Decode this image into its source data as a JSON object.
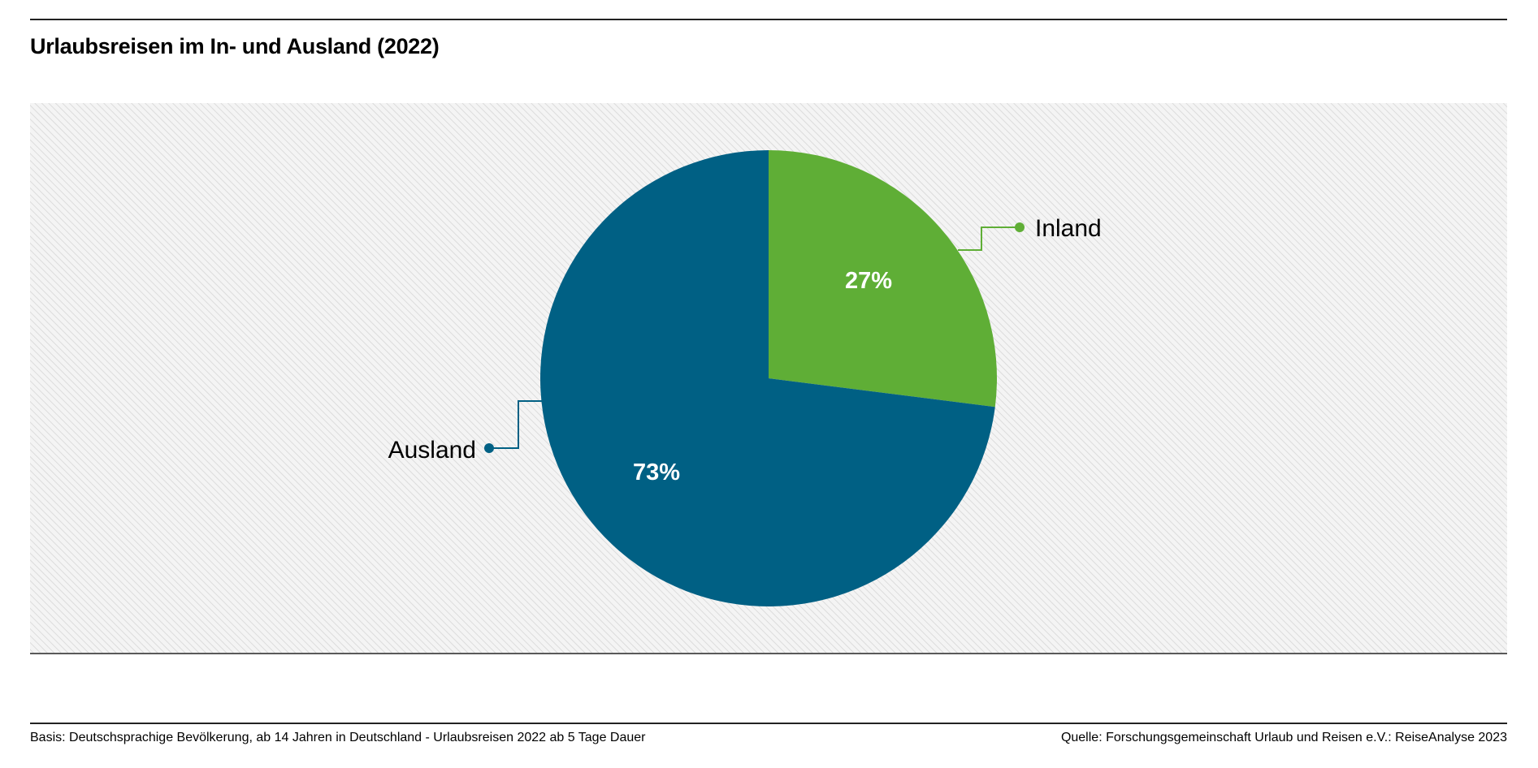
{
  "chart_data": {
    "type": "pie",
    "title": "Urlaubsreisen im In- und Ausland (2022)",
    "slices": [
      {
        "name": "Inland",
        "value": 27,
        "label": "27%",
        "color": "#5fae36"
      },
      {
        "name": "Ausland",
        "value": 73,
        "label": "73%",
        "color": "#006084"
      }
    ],
    "start_angle": "12 o'clock, clockwise",
    "background": "hatched light gray"
  },
  "footer": {
    "basis": "Basis: Deutschsprachige Bevölkerung, ab 14 Jahren in Deutschland - Urlaubsreisen 2022 ab 5 Tage Dauer",
    "source": "Quelle: Forschungsgemeinschaft Urlaub und Reisen e.V.: ReiseAnalyse 2023"
  }
}
